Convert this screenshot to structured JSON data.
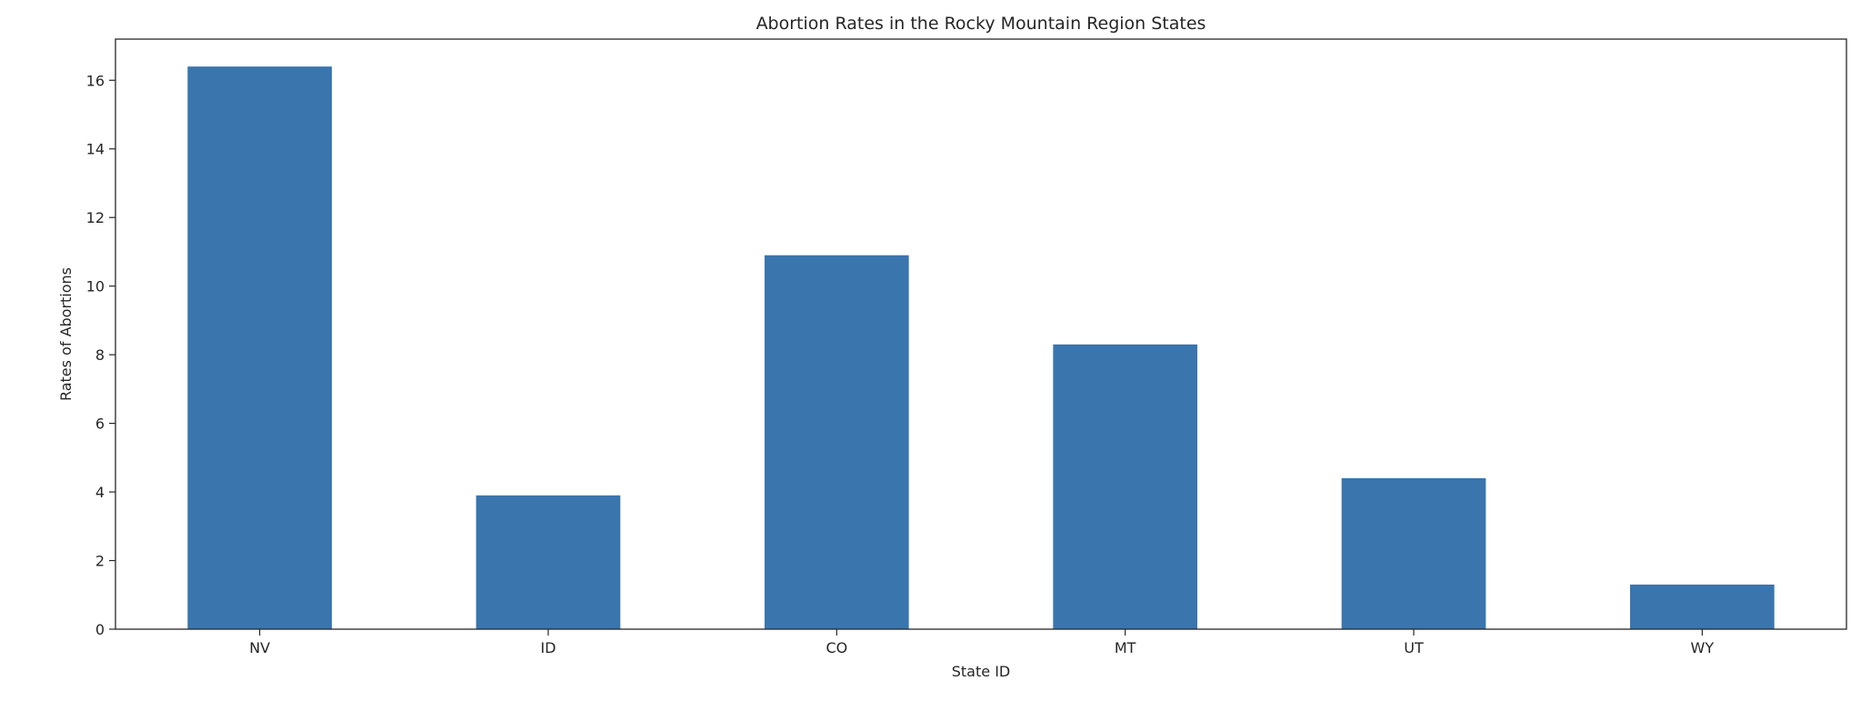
{
  "chart_data": {
    "type": "bar",
    "title": "Abortion Rates in the Rocky Mountain Region States",
    "xlabel": "State ID",
    "ylabel": "Rates of Abortions",
    "categories": [
      "NV",
      "ID",
      "CO",
      "MT",
      "UT",
      "WY"
    ],
    "values": [
      16.4,
      3.9,
      10.9,
      8.3,
      4.4,
      1.3
    ],
    "ylim": [
      0,
      17.2
    ],
    "yticks": [
      0,
      2,
      4,
      6,
      8,
      10,
      12,
      14,
      16
    ],
    "grid": false,
    "legend": "none",
    "bar_color": "#3a75ae"
  }
}
